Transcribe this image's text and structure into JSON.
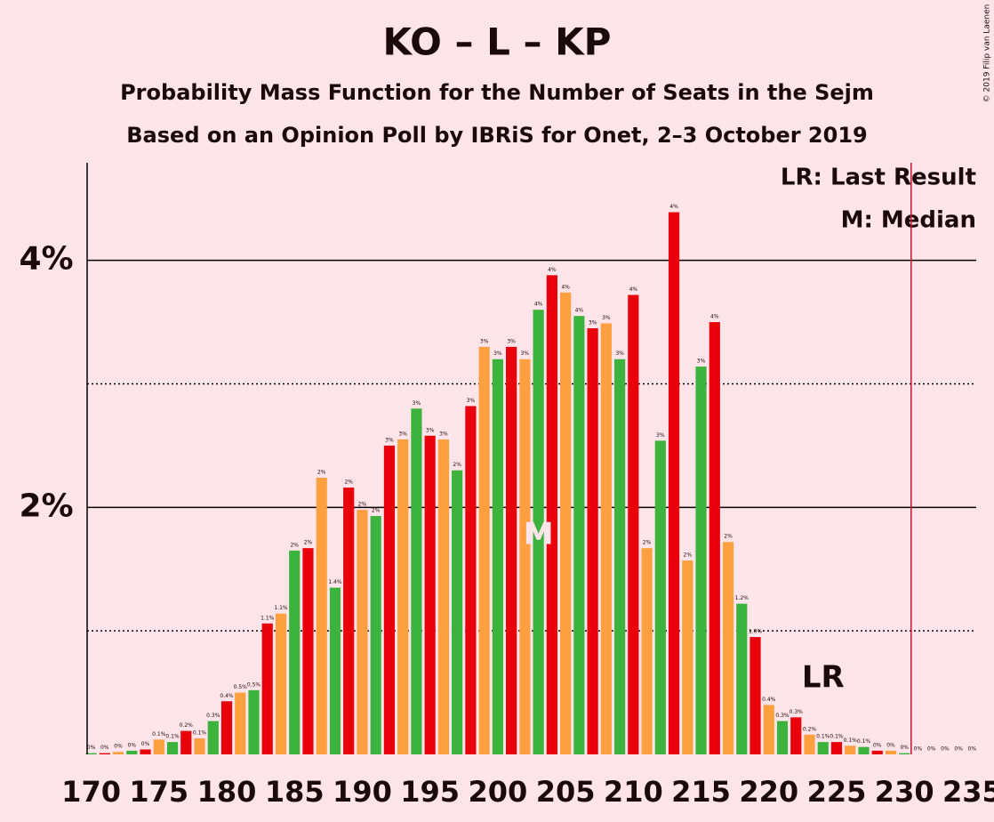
{
  "chart_data": {
    "type": "bar",
    "title": "KO – L – KP",
    "subtitle": "Probability Mass Function for the Number of Seats in the Sejm",
    "subtitle2": "Based on an Opinion Poll by IBRiS for Onet, 2–3 October 2019",
    "credit": "© 2019 Filip van Laenen",
    "legend": [
      "LR: Last Result",
      "M: Median"
    ],
    "x": [
      170,
      171,
      172,
      173,
      174,
      175,
      176,
      177,
      178,
      179,
      180,
      181,
      182,
      183,
      184,
      185,
      186,
      187,
      188,
      189,
      190,
      191,
      192,
      193,
      194,
      195,
      196,
      197,
      198,
      199,
      200,
      201,
      202,
      203,
      204,
      205,
      206,
      207,
      208,
      209,
      210,
      211,
      212,
      213,
      214,
      215,
      216,
      217,
      218,
      219,
      220,
      221,
      222,
      223,
      224,
      225,
      226,
      227,
      228,
      229,
      230,
      231,
      232,
      233,
      234,
      235
    ],
    "values": [
      0.01,
      0.01,
      0.02,
      0.03,
      0.04,
      0.12,
      0.1,
      0.19,
      0.13,
      0.27,
      0.43,
      0.5,
      0.52,
      1.06,
      1.14,
      1.65,
      1.67,
      2.24,
      1.35,
      2.16,
      1.98,
      1.93,
      2.5,
      2.55,
      2.8,
      2.58,
      2.55,
      2.3,
      2.82,
      3.3,
      3.2,
      3.3,
      3.2,
      3.6,
      3.88,
      3.74,
      3.55,
      3.45,
      3.49,
      3.2,
      3.72,
      1.67,
      2.54,
      4.39,
      1.57,
      3.14,
      3.5,
      1.72,
      1.22,
      0.95,
      0.4,
      0.27,
      0.3,
      0.16,
      0.1,
      0.1,
      0.07,
      0.06,
      0.03,
      0.03,
      0.01,
      0,
      0,
      0,
      0,
      0
    ],
    "value_labels": [
      "0%",
      "0%",
      "0%",
      "0%",
      "0%",
      "0.1%",
      "0.1%",
      "0.2%",
      "0.1%",
      "0.3%",
      "0.4%",
      "0.5%",
      "0.5%",
      "1.1%",
      "1.1%",
      "2%",
      "2%",
      "2%",
      "1.4%",
      "2%",
      "2%",
      "2%",
      "3%",
      "3%",
      "3%",
      "3%",
      "3%",
      "2%",
      "3%",
      "3%",
      "3%",
      "3%",
      "3%",
      "4%",
      "4%",
      "4%",
      "4%",
      "3%",
      "3%",
      "3%",
      "4%",
      "2%",
      "3%",
      "4%",
      "2%",
      "3%",
      "4%",
      "2%",
      "1.2%",
      "1.0%",
      "0.4%",
      "0.3%",
      "0.3%",
      "0.2%",
      "0.1%",
      "0.1%",
      "0.1%",
      "0.1%",
      "0%",
      "0%",
      "0%",
      "0%",
      "0%",
      "0%",
      "0%",
      "0%"
    ],
    "colors": [
      "#3cb33c",
      "#e8000b",
      "#ffa040"
    ],
    "xlim": [
      169.7,
      235.3
    ],
    "xticks": [
      170,
      175,
      180,
      185,
      190,
      195,
      200,
      205,
      210,
      215,
      220,
      225,
      230,
      235
    ],
    "ylim": [
      0,
      4.79
    ],
    "yticks": [
      {
        "value": 2,
        "label": "2%"
      },
      {
        "value": 4,
        "label": "4%"
      }
    ],
    "minor_yticks": [
      1,
      3
    ],
    "median": {
      "x": 203,
      "label": "M"
    },
    "last_result": {
      "x": 224,
      "label": "LR"
    },
    "majority_line": 230.5
  }
}
